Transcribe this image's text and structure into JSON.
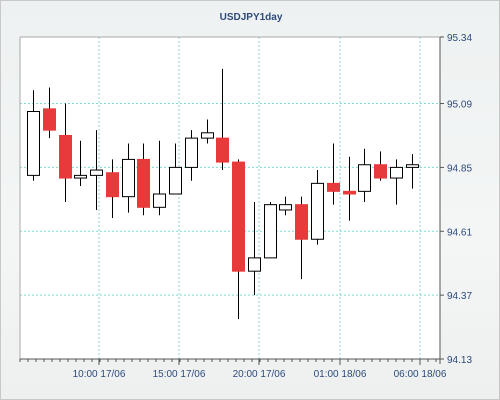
{
  "chart_data": {
    "type": "candlestick",
    "title": "USDJPY1day",
    "xlabel": "",
    "ylabel": "",
    "ylim": [
      94.13,
      95.34
    ],
    "y_ticks": [
      "94.13",
      "94.37",
      "94.61",
      "94.85",
      "95.09",
      "95.34"
    ],
    "x_ticks": [
      "10:00 17/06",
      "15:00 17/06",
      "20:00 17/06",
      "01:00 18/06",
      "06:00 18/06"
    ],
    "grid": true,
    "bull_color": "#ffffff",
    "bear_color": "#e8393b",
    "candles": [
      {
        "o": 94.82,
        "h": 95.14,
        "l": 94.8,
        "c": 95.06
      },
      {
        "o": 95.07,
        "h": 95.15,
        "l": 94.96,
        "c": 94.99
      },
      {
        "o": 94.97,
        "h": 95.09,
        "l": 94.72,
        "c": 94.81
      },
      {
        "o": 94.81,
        "h": 94.95,
        "l": 94.78,
        "c": 94.82
      },
      {
        "o": 94.82,
        "h": 94.99,
        "l": 94.69,
        "c": 94.84
      },
      {
        "o": 94.83,
        "h": 94.88,
        "l": 94.66,
        "c": 94.74
      },
      {
        "o": 94.74,
        "h": 94.94,
        "l": 94.68,
        "c": 94.88
      },
      {
        "o": 94.88,
        "h": 94.94,
        "l": 94.67,
        "c": 94.7
      },
      {
        "o": 94.7,
        "h": 94.95,
        "l": 94.67,
        "c": 94.75
      },
      {
        "o": 94.75,
        "h": 94.94,
        "l": 94.75,
        "c": 94.85
      },
      {
        "o": 94.85,
        "h": 94.99,
        "l": 94.8,
        "c": 94.96
      },
      {
        "o": 94.96,
        "h": 95.03,
        "l": 94.94,
        "c": 94.98
      },
      {
        "o": 94.96,
        "h": 95.22,
        "l": 94.84,
        "c": 94.87
      },
      {
        "o": 94.87,
        "h": 94.88,
        "l": 94.28,
        "c": 94.46
      },
      {
        "o": 94.46,
        "h": 94.72,
        "l": 94.37,
        "c": 94.51
      },
      {
        "o": 94.51,
        "h": 94.72,
        "l": 94.51,
        "c": 94.71
      },
      {
        "o": 94.69,
        "h": 94.74,
        "l": 94.67,
        "c": 94.71
      },
      {
        "o": 94.71,
        "h": 94.74,
        "l": 94.43,
        "c": 94.58
      },
      {
        "o": 94.58,
        "h": 94.84,
        "l": 94.56,
        "c": 94.79
      },
      {
        "o": 94.79,
        "h": 94.94,
        "l": 94.71,
        "c": 94.76
      },
      {
        "o": 94.76,
        "h": 94.89,
        "l": 94.65,
        "c": 94.75
      },
      {
        "o": 94.76,
        "h": 94.92,
        "l": 94.72,
        "c": 94.86
      },
      {
        "o": 94.86,
        "h": 94.91,
        "l": 94.8,
        "c": 94.81
      },
      {
        "o": 94.81,
        "h": 94.88,
        "l": 94.71,
        "c": 94.85
      },
      {
        "o": 94.85,
        "h": 94.9,
        "l": 94.77,
        "c": 94.86
      }
    ]
  }
}
